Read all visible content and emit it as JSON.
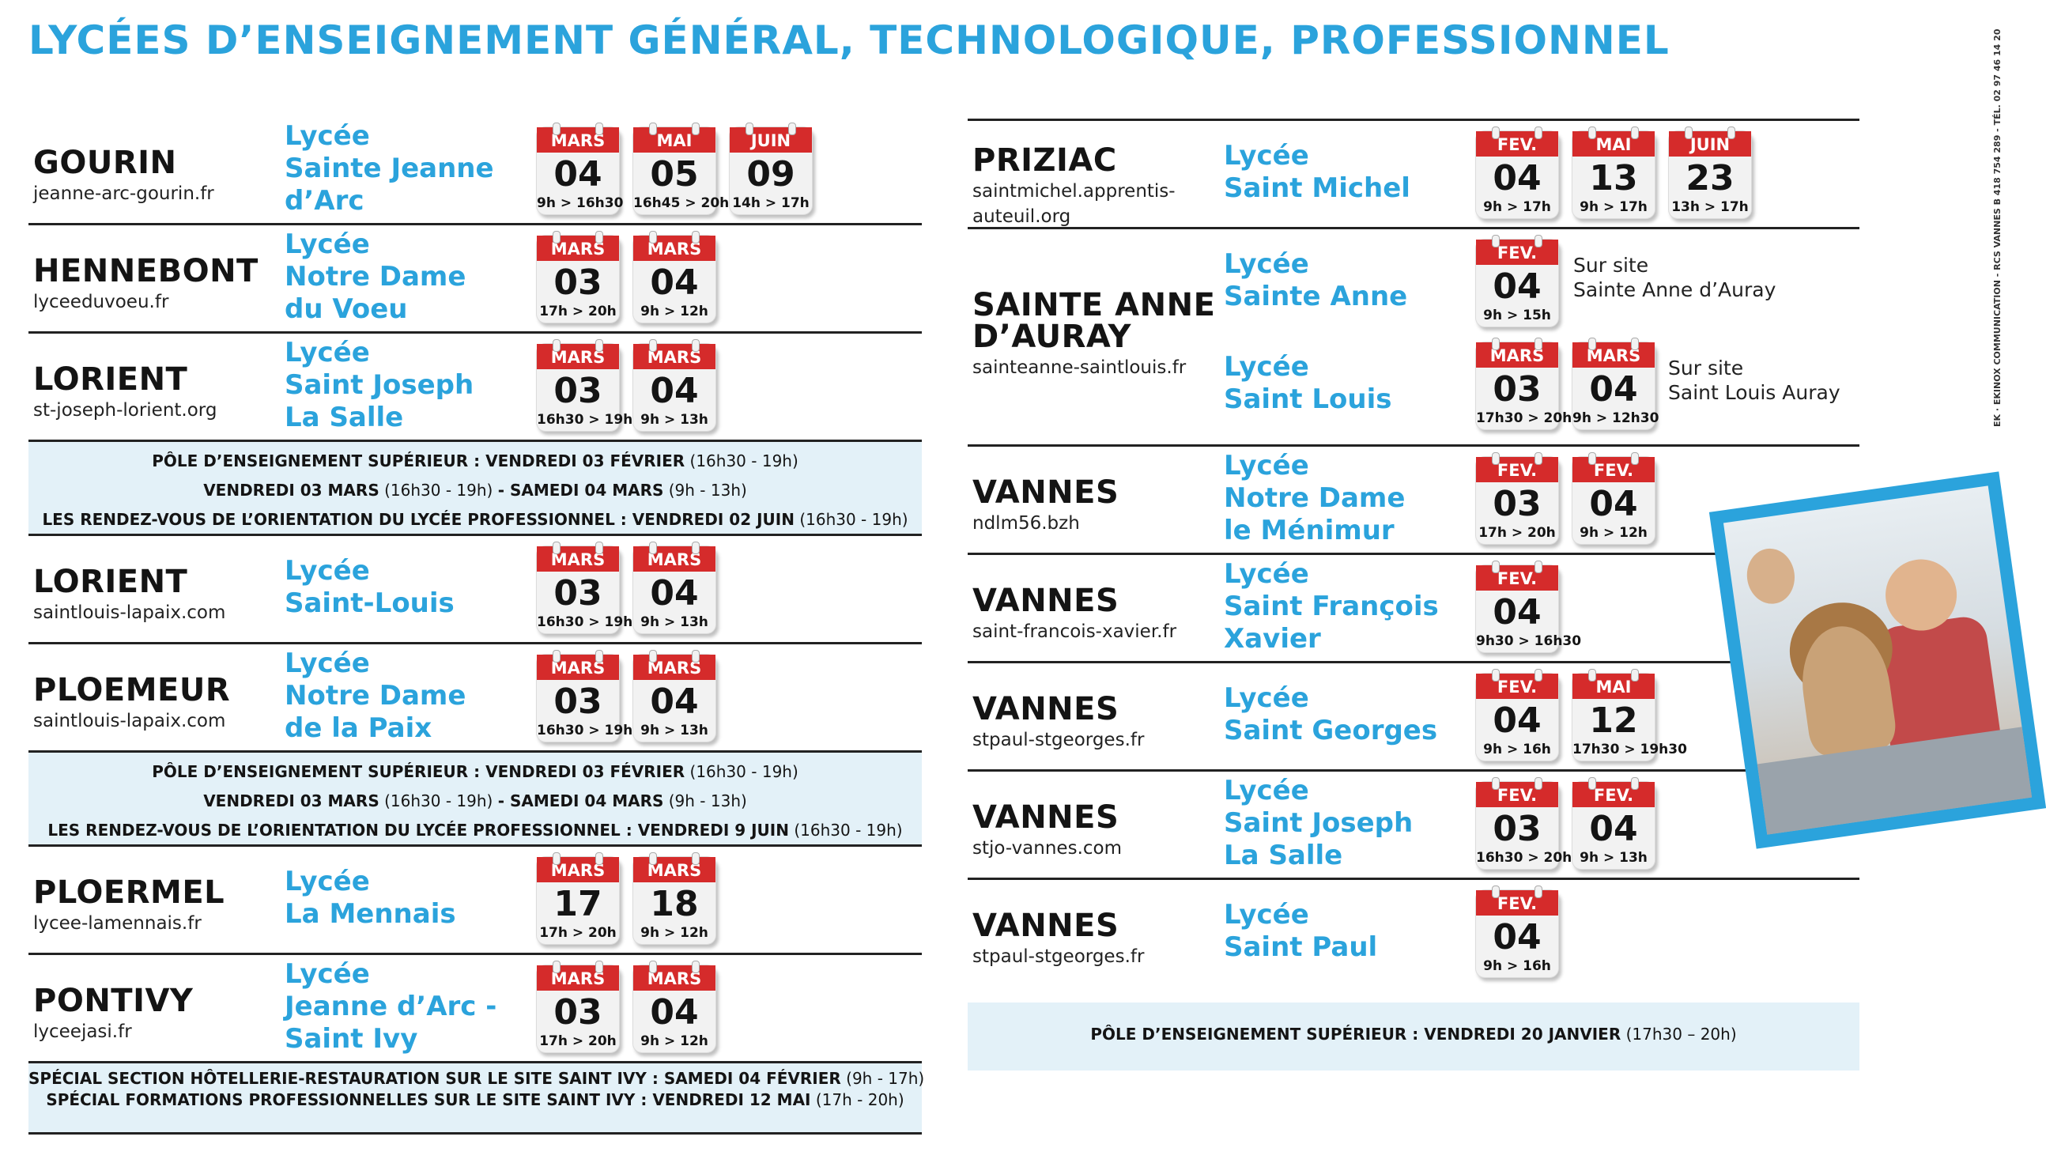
{
  "title": "LYCÉES D’ENSEIGNEMENT GÉNÉRAL, TECHNOLOGIQUE, PROFESSIONNEL",
  "side_legal": "EK · EKINOX COMMUNICATION - RCS VANNES B 418 754 289 - TÉL. 02 97 46 14 20",
  "left": {
    "rows": [
      {
        "city": "GOURIN",
        "site": "jeanne-arc-gourin.fr",
        "school": [
          "Lycée",
          "Sainte Jeanne",
          "d’Arc"
        ],
        "dates": [
          {
            "month": "MARS",
            "day": "04",
            "time": "9h > 16h30"
          },
          {
            "month": "MAI",
            "day": "05",
            "time": "16h45 > 20h"
          },
          {
            "month": "JUIN",
            "day": "09",
            "time": "14h > 17h"
          }
        ]
      },
      {
        "city": "HENNEBONT",
        "site": "lyceeduvoeu.fr",
        "school": [
          "Lycée",
          "Notre Dame",
          "du Voeu"
        ],
        "dates": [
          {
            "month": "MARS",
            "day": "03",
            "time": "17h > 20h"
          },
          {
            "month": "MARS",
            "day": "04",
            "time": "9h > 12h"
          }
        ]
      },
      {
        "city": "LORIENT",
        "site": "st-joseph-lorient.org",
        "school": [
          "Lycée",
          "Saint Joseph",
          "La Salle"
        ],
        "dates": [
          {
            "month": "MARS",
            "day": "03",
            "time": "16h30 > 19h"
          },
          {
            "month": "MARS",
            "day": "04",
            "time": "9h > 13h"
          }
        ]
      },
      {
        "city": "LORIENT",
        "site": "saintlouis-lapaix.com",
        "school": [
          "Lycée",
          "Saint-Louis"
        ],
        "dates": [
          {
            "month": "MARS",
            "day": "03",
            "time": "16h30 > 19h"
          },
          {
            "month": "MARS",
            "day": "04",
            "time": "9h > 13h"
          }
        ]
      },
      {
        "city": "PLOEMEUR",
        "site": "saintlouis-lapaix.com",
        "school": [
          "Lycée",
          "Notre Dame",
          "de la Paix"
        ],
        "dates": [
          {
            "month": "MARS",
            "day": "03",
            "time": "16h30 > 19h"
          },
          {
            "month": "MARS",
            "day": "04",
            "time": "9h > 13h"
          }
        ]
      },
      {
        "city": "PLOERMEL",
        "site": "lycee-lamennais.fr",
        "school": [
          "Lycée",
          "La Mennais"
        ],
        "dates": [
          {
            "month": "MARS",
            "day": "17",
            "time": "17h > 20h"
          },
          {
            "month": "MARS",
            "day": "18",
            "time": "9h > 12h"
          }
        ]
      },
      {
        "city": "PONTIVY",
        "site": "lyceejasi.fr",
        "school": [
          "Lycée",
          "Jeanne d’Arc -",
          "Saint Ivy"
        ],
        "dates": [
          {
            "month": "MARS",
            "day": "03",
            "time": "17h > 20h"
          },
          {
            "month": "MARS",
            "day": "04",
            "time": "9h > 12h"
          }
        ]
      }
    ],
    "info1": [
      {
        "bold": "PÔLE D’ENSEIGNEMENT SUPÉRIEUR : VENDREDI 03 FÉVRIER",
        "time": "(16h30 - 19h)"
      },
      {
        "bold": "VENDREDI 03 MARS",
        "time": "(16h30 - 19h)",
        "bold2": "- SAMEDI 04 MARS",
        "time2": "(9h - 13h)"
      },
      {
        "bold": "LES RENDEZ-VOUS DE L’ORIENTATION DU LYCÉE PROFESSIONNEL : VENDREDI 02 JUIN",
        "time": "(16h30 - 19h)"
      }
    ],
    "info2": [
      {
        "bold": "PÔLE D’ENSEIGNEMENT SUPÉRIEUR : VENDREDI 03 FÉVRIER",
        "time": "(16h30 - 19h)"
      },
      {
        "bold": "VENDREDI 03 MARS",
        "time": "(16h30 - 19h)",
        "bold2": "- SAMEDI 04 MARS",
        "time2": "(9h - 13h)"
      },
      {
        "bold": "LES RENDEZ-VOUS DE L’ORIENTATION DU LYCÉE PROFESSIONNEL : VENDREDI 9 JUIN",
        "time": "(16h30 - 19h)"
      }
    ],
    "info3": [
      {
        "bold": "SPÉCIAL SECTION HÔTELLERIE-RESTAURATION SUR LE SITE SAINT IVY : SAMEDI 04 FÉVRIER",
        "time": "(9h - 17h)"
      },
      {
        "bold": "SPÉCIAL FORMATIONS PROFESSIONNELLES SUR LE SITE SAINT IVY : VENDREDI 12 MAI",
        "time": "(17h - 20h)"
      }
    ]
  },
  "right": {
    "priziac": {
      "city": "PRIZIAC",
      "site": [
        "saintmichel.apprentis-",
        "auteuil.org"
      ],
      "school": [
        "Lycée",
        "Saint Michel"
      ],
      "dates": [
        {
          "month": "FEV.",
          "day": "04",
          "time": "9h > 17h"
        },
        {
          "month": "MAI",
          "day": "13",
          "time": "9h > 17h"
        },
        {
          "month": "JUIN",
          "day": "23",
          "time": "13h > 17h"
        }
      ]
    },
    "auray": {
      "city": [
        "SAINTE ANNE",
        "D’AURAY"
      ],
      "site": "sainteanne-saintlouis.fr",
      "school_a": [
        "Lycée",
        "Sainte Anne"
      ],
      "dates_a": [
        {
          "month": "FEV.",
          "day": "04",
          "time": "9h > 15h"
        }
      ],
      "note_a": [
        "Sur site",
        "Sainte Anne d’Auray"
      ],
      "school_b": [
        "Lycée",
        "Saint Louis"
      ],
      "dates_b": [
        {
          "month": "MARS",
          "day": "03",
          "time": "17h30 > 20h"
        },
        {
          "month": "MARS",
          "day": "04",
          "time": "9h > 12h30"
        }
      ],
      "note_b": [
        "Sur site",
        "Saint Louis Auray"
      ]
    },
    "rows": [
      {
        "city": "VANNES",
        "site": "ndlm56.bzh",
        "school": [
          "Lycée",
          "Notre Dame",
          "le Ménimur"
        ],
        "dates": [
          {
            "month": "FEV.",
            "day": "03",
            "time": "17h > 20h"
          },
          {
            "month": "FEV.",
            "day": "04",
            "time": "9h > 12h"
          }
        ]
      },
      {
        "city": "VANNES",
        "site": "saint-francois-xavier.fr",
        "school": [
          "Lycée",
          "Saint François",
          "Xavier"
        ],
        "dates": [
          {
            "month": "FEV.",
            "day": "04",
            "time": "9h30 > 16h30"
          }
        ]
      },
      {
        "city": "VANNES",
        "site": "stpaul-stgeorges.fr",
        "school": [
          "Lycée",
          "Saint Georges"
        ],
        "dates": [
          {
            "month": "FEV.",
            "day": "04",
            "time": "9h > 16h"
          },
          {
            "month": "MAI",
            "day": "12",
            "time": "17h30 > 19h30"
          }
        ]
      },
      {
        "city": "VANNES",
        "site": "stjo-vannes.com",
        "school": [
          "Lycée",
          "Saint Joseph",
          "La Salle"
        ],
        "dates": [
          {
            "month": "FEV.",
            "day": "03",
            "time": "16h30 > 20h"
          },
          {
            "month": "FEV.",
            "day": "04",
            "time": "9h > 13h"
          }
        ]
      },
      {
        "city": "VANNES",
        "site": "stpaul-stgeorges.fr",
        "school": [
          "Lycée",
          "Saint Paul"
        ],
        "dates": [
          {
            "month": "FEV.",
            "day": "04",
            "time": "9h > 16h"
          }
        ]
      }
    ],
    "info": {
      "bold": "PÔLE D’ENSEIGNEMENT SUPÉRIEUR : VENDREDI 20 JANVIER",
      "time": "(17h30 – 20h)"
    }
  }
}
